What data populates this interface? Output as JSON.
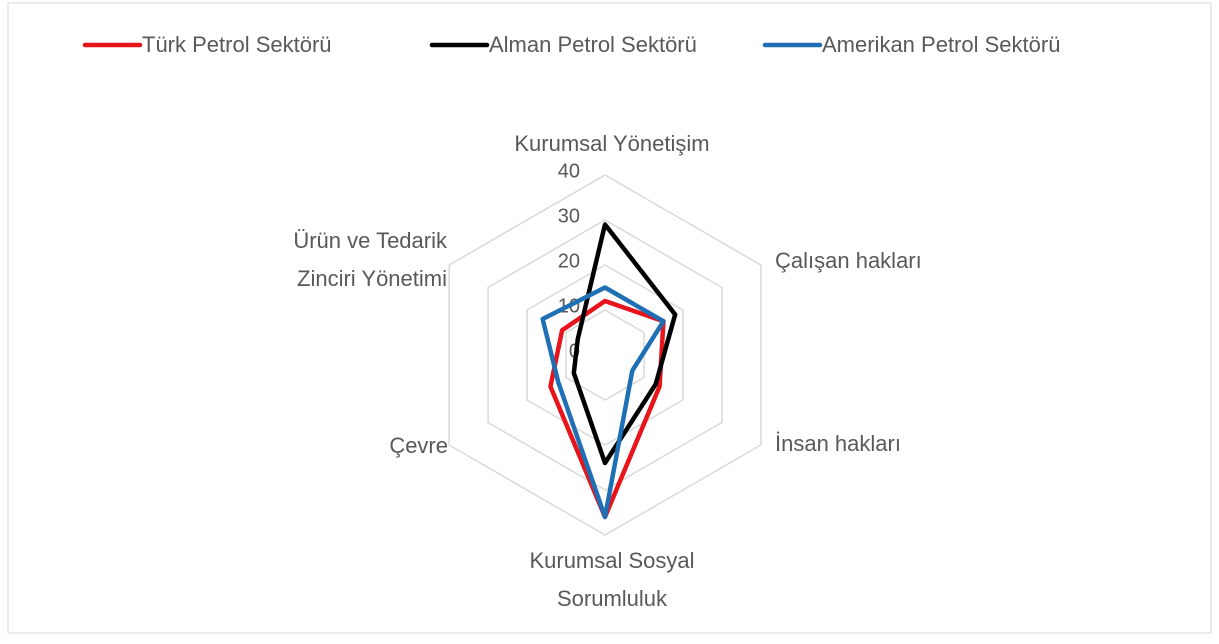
{
  "chart_data": {
    "type": "radar",
    "categories": [
      [
        "Kurumsal Yönetişim"
      ],
      [
        "Çalışan hakları"
      ],
      [
        "İnsan hakları"
      ],
      [
        "Kurumsal Sosyal",
        "Sorumluluk"
      ],
      [
        "Çevre"
      ],
      [
        "Ürün ve Tedarik",
        "Zinciri Yönetimi"
      ]
    ],
    "series": [
      {
        "name": "Türk Petrol Sektörü",
        "color": "#e8141b",
        "values": [
          12,
          15,
          14,
          36,
          14,
          11
        ]
      },
      {
        "name": "Alman Petrol Sektörü",
        "color": "#000000",
        "values": [
          29,
          18,
          13,
          24,
          8,
          7
        ]
      },
      {
        "name": "Amerikan Petrol Sektörü",
        "color": "#1f6fb5",
        "values": [
          15,
          15,
          7,
          36,
          12,
          16
        ]
      }
    ],
    "ylim": [
      0,
      40
    ],
    "yticks": [
      0,
      10,
      20,
      30,
      40
    ],
    "grid": true,
    "legend": "top"
  }
}
